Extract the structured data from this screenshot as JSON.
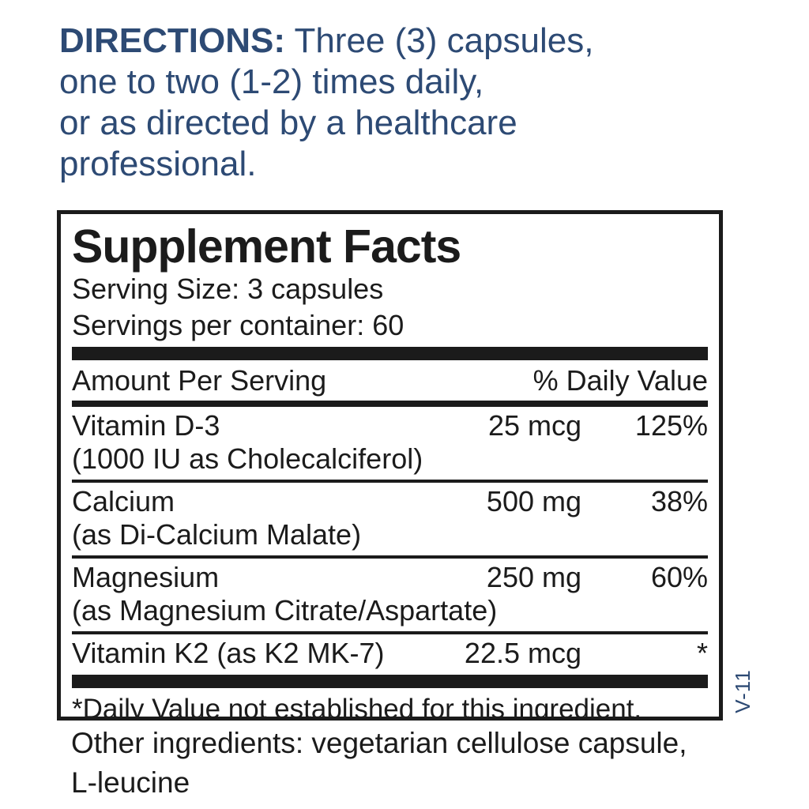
{
  "colors": {
    "accent_blue": "#2d4a74",
    "label_black": "#1b1b1b"
  },
  "directions": {
    "heading": "DIRECTIONS:",
    "rest": "Three (3) capsules,\none to two (1-2) times daily,\nor as directed by a healthcare\nprofessional."
  },
  "panel": {
    "title": "Supplement Facts",
    "serving_size": "Serving Size: 3 capsules",
    "servings_per_container": "Servings per container: 60",
    "header": {
      "amount": "Amount Per Serving",
      "daily_value": "% Daily Value"
    },
    "rows": [
      {
        "name": "Vitamin D-3",
        "sub": "(1000 IU as Cholecalciferol)",
        "amount": "25 mcg",
        "dv": "125%"
      },
      {
        "name": "Calcium",
        "sub": "(as Di-Calcium Malate)",
        "amount": "500 mg",
        "dv": "38%"
      },
      {
        "name": "Magnesium",
        "sub": "(as Magnesium Citrate/Aspartate)",
        "amount": "250 mg",
        "dv": "60%"
      },
      {
        "name": "Vitamin K2 (as K2 MK-7)",
        "sub": "",
        "amount": "22.5 mcg",
        "dv": "*"
      }
    ],
    "footnote": "*Daily Value not established for this ingredient."
  },
  "other_ingredients": "Other ingredients: vegetarian cellulose capsule,\nL-leucine",
  "version_code": "V-11"
}
